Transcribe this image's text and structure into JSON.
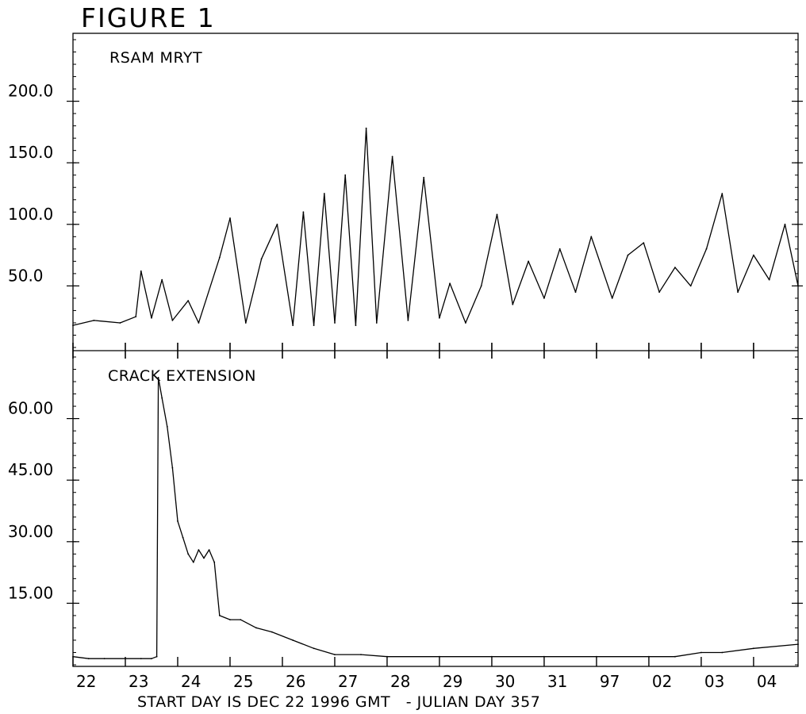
{
  "figure_title": "FIGURE 1",
  "chart_data": [
    {
      "type": "line",
      "title": "RSAM MRYT",
      "xlabel": "START DAY IS DEC 22 1996 GMT   - JULIAN DAY 357",
      "ylabel": "",
      "xlim": [
        0,
        13.85
      ],
      "ylim": [
        0,
        250
      ],
      "x_tick_labels": [
        "22",
        "23",
        "24",
        "25",
        "26",
        "27",
        "28",
        "29",
        "30",
        "31",
        "97",
        "02",
        "03",
        "04"
      ],
      "y_ticks": [
        50,
        100,
        150,
        200
      ],
      "y_tick_labels": [
        "50.0",
        "100.0",
        "150.0",
        "200.0"
      ],
      "grid": false,
      "series": [
        {
          "x": [
            0.0,
            0.4,
            0.9,
            1.2,
            1.3,
            1.5,
            1.7,
            1.9,
            2.2,
            2.4,
            2.8,
            3.0,
            3.3,
            3.6,
            3.9,
            4.2,
            4.4,
            4.6,
            4.8,
            5.0,
            5.2,
            5.4,
            5.6,
            5.8,
            6.1,
            6.4,
            6.7,
            7.0,
            7.2,
            7.5,
            7.8,
            8.1,
            8.4,
            8.7,
            9.0,
            9.3,
            9.6,
            9.9,
            10.3,
            10.6,
            10.9,
            11.2,
            11.5,
            11.8,
            12.1,
            12.4,
            12.7,
            13.0,
            13.3,
            13.6,
            13.85
          ],
          "y": [
            18,
            22,
            20,
            25,
            62,
            24,
            55,
            22,
            38,
            20,
            73,
            105,
            20,
            72,
            100,
            18,
            110,
            18,
            125,
            20,
            140,
            18,
            178,
            20,
            155,
            22,
            138,
            24,
            52,
            20,
            50,
            108,
            35,
            70,
            40,
            80,
            45,
            90,
            40,
            75,
            85,
            45,
            65,
            50,
            80,
            125,
            45,
            75,
            55,
            100,
            50
          ]
        }
      ]
    },
    {
      "type": "line",
      "title": "CRACK EXTENSION",
      "xlabel": "START DAY IS DEC 22 1996 GMT   - JULIAN DAY 357",
      "ylabel": "",
      "xlim": [
        0,
        13.85
      ],
      "ylim": [
        0,
        75
      ],
      "x_tick_labels": [
        "22",
        "23",
        "24",
        "25",
        "26",
        "27",
        "28",
        "29",
        "30",
        "31",
        "97",
        "02",
        "03",
        "04"
      ],
      "y_ticks": [
        15,
        30,
        45,
        60
      ],
      "y_tick_labels": [
        "15.00",
        "30.00",
        "45.00",
        "60.00"
      ],
      "grid": false,
      "series": [
        {
          "x": [
            0.0,
            0.3,
            0.6,
            1.0,
            1.3,
            1.5,
            1.6,
            1.63,
            1.7,
            1.8,
            1.9,
            2.0,
            2.1,
            2.2,
            2.3,
            2.4,
            2.5,
            2.6,
            2.7,
            2.8,
            3.0,
            3.2,
            3.5,
            3.8,
            4.2,
            4.6,
            5.0,
            5.5,
            6.0,
            7.0,
            8.0,
            9.0,
            10.0,
            11.0,
            11.5,
            12.0,
            12.4,
            13.0,
            13.85
          ],
          "y": [
            2,
            1.5,
            1.5,
            1.5,
            1.5,
            1.5,
            2,
            70,
            65,
            58,
            48,
            35,
            31,
            27,
            25,
            28,
            26,
            28,
            25,
            12,
            11,
            11,
            9,
            8,
            6,
            4,
            2.5,
            2.5,
            2,
            2,
            2,
            2,
            2,
            2,
            2,
            3,
            3,
            4,
            5
          ]
        }
      ]
    }
  ]
}
